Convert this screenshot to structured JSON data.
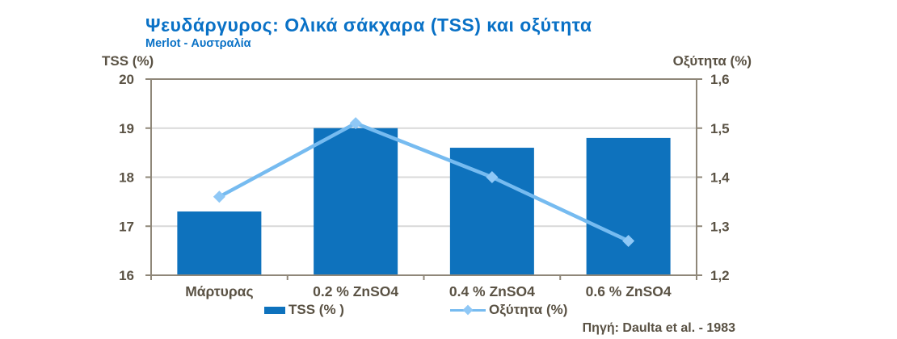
{
  "colors": {
    "title_blue": "#0971C6",
    "bar_blue": "#0E72BD",
    "line_blue": "#76BBF0",
    "marker_blue": "#8FC8F6",
    "axis_text": "#5A5244",
    "axis_line": "#8F8779",
    "gridline": "#D9D9D9",
    "background": "#FFFFFF"
  },
  "chart_data": {
    "type": "bar",
    "subtype": "combo bar + line, dual y-axis",
    "title": "Ψευδάργυρος: Ολικά σάκχαρα (TSS) και οξύτητα",
    "subtitle": "Merlot - Αυστραλία",
    "categories": [
      "Μάρτυρας",
      "0.2 % ZnSO4",
      "0.4 % ZnSO4",
      "0.6 % ZnSO4"
    ],
    "series": [
      {
        "name": "TSS (% )",
        "type": "bar",
        "axis": "left",
        "color": "#0E72BD",
        "values": [
          17.3,
          19.0,
          18.6,
          18.8
        ]
      },
      {
        "name": "Οξύτητα (%)",
        "type": "line",
        "axis": "right",
        "color": "#76BBF0",
        "marker": "diamond",
        "values": [
          1.36,
          1.51,
          1.4,
          1.27
        ]
      }
    ],
    "left_axis": {
      "label": "TSS (%)",
      "min": 16,
      "max": 20,
      "ticks": [
        16,
        17,
        18,
        19,
        20
      ],
      "tick_labels": [
        "16",
        "17",
        "18",
        "19",
        "20"
      ]
    },
    "right_axis": {
      "label": "Οξύτητα (%)",
      "min": 1.2,
      "max": 1.6,
      "ticks": [
        1.2,
        1.3,
        1.4,
        1.5,
        1.6
      ],
      "tick_labels": [
        "1,2",
        "1,3",
        "1,4",
        "1,5",
        "1,6"
      ]
    },
    "grid": true,
    "legend_position": "bottom",
    "source": "Πηγή: Daulta et al. - 1983"
  }
}
